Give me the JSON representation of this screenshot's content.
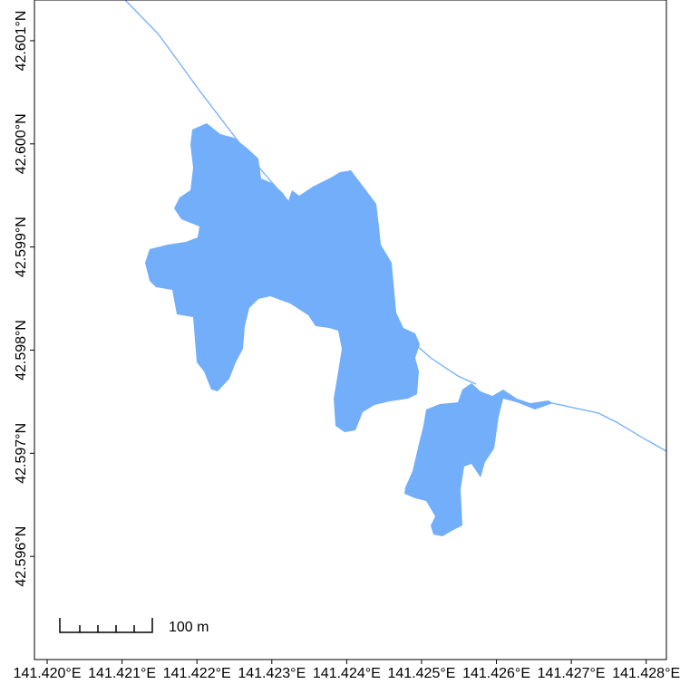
{
  "chart_data": {
    "type": "map",
    "xlim": [
      141.41983,
      141.42827
    ],
    "ylim": [
      42.595,
      42.601395
    ],
    "xticks": [
      {
        "value": 141.42,
        "label": "141.420°E"
      },
      {
        "value": 141.421,
        "label": "141.421°E"
      },
      {
        "value": 141.422,
        "label": "141.422°E"
      },
      {
        "value": 141.423,
        "label": "141.423°E"
      },
      {
        "value": 141.424,
        "label": "141.424°E"
      },
      {
        "value": 141.425,
        "label": "141.425°E"
      },
      {
        "value": 141.426,
        "label": "141.426°E"
      },
      {
        "value": 141.427,
        "label": "141.427°E"
      },
      {
        "value": 141.428,
        "label": "141.428°E"
      }
    ],
    "yticks": [
      {
        "value": 42.596,
        "label": "42.596°N"
      },
      {
        "value": 42.597,
        "label": "42.597°N"
      },
      {
        "value": 42.598,
        "label": "42.598°N"
      },
      {
        "value": 42.599,
        "label": "42.599°N"
      },
      {
        "value": 42.6,
        "label": "42.600°N"
      },
      {
        "value": 42.601,
        "label": "42.601°N"
      }
    ],
    "water_color": "#72aefa",
    "scale_bar": {
      "label": "100 m"
    }
  }
}
